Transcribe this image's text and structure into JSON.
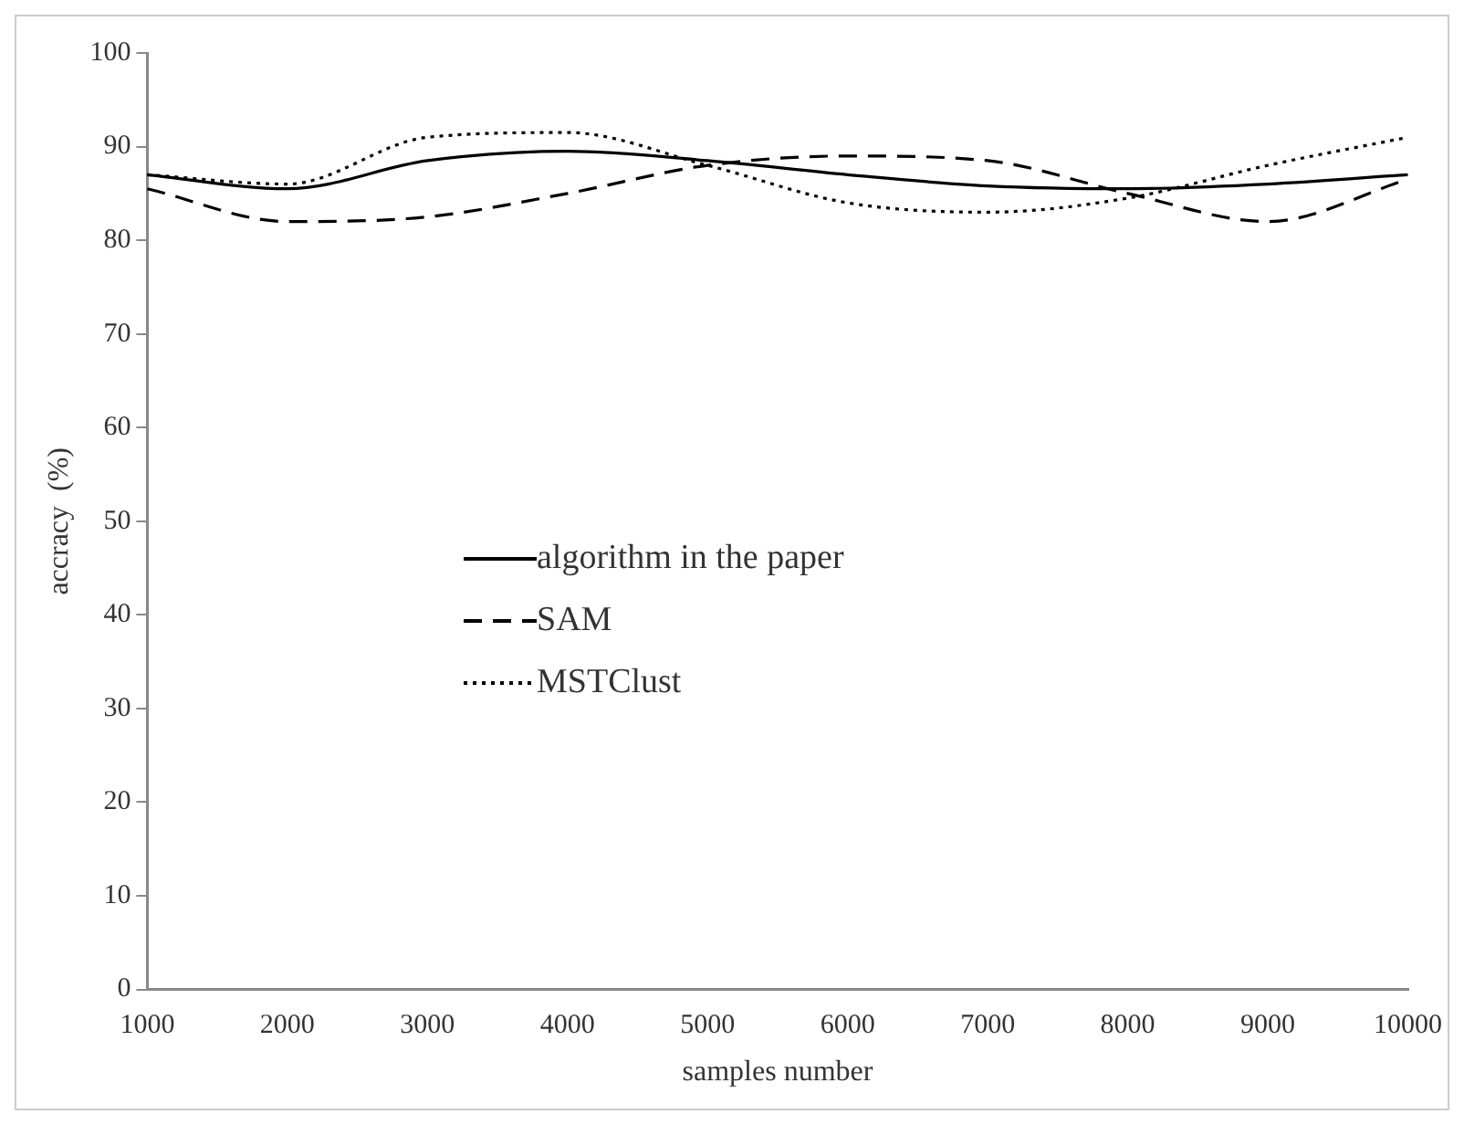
{
  "chart_data": {
    "type": "line",
    "xlabel": "samples number",
    "ylabel": "accracy  (%)",
    "categories": [
      "1000",
      "2000",
      "3000",
      "4000",
      "5000",
      "6000",
      "7000",
      "8000",
      "9000",
      "10000"
    ],
    "series": [
      {
        "name": "algorithm in the paper",
        "color": "#000000",
        "line_style": "solid",
        "values": [
          87,
          85.5,
          88.5,
          89.5,
          88.5,
          87,
          85.8,
          85.5,
          86,
          87
        ]
      },
      {
        "name": "SAM",
        "color": "#000000",
        "line_style": "dashed",
        "values": [
          85.5,
          82,
          82.5,
          85,
          88,
          89,
          88.5,
          85,
          82,
          86.5
        ]
      },
      {
        "name": "MSTClust",
        "color": "#000000",
        "line_style": "dotted",
        "values": [
          87,
          86,
          91,
          91.5,
          88,
          84,
          83,
          84.5,
          88,
          91
        ]
      }
    ],
    "ylim": [
      0,
      100
    ],
    "yticks": [
      0,
      10,
      20,
      30,
      40,
      50,
      60,
      70,
      80,
      90,
      100
    ],
    "grid": false,
    "legend": "center"
  }
}
